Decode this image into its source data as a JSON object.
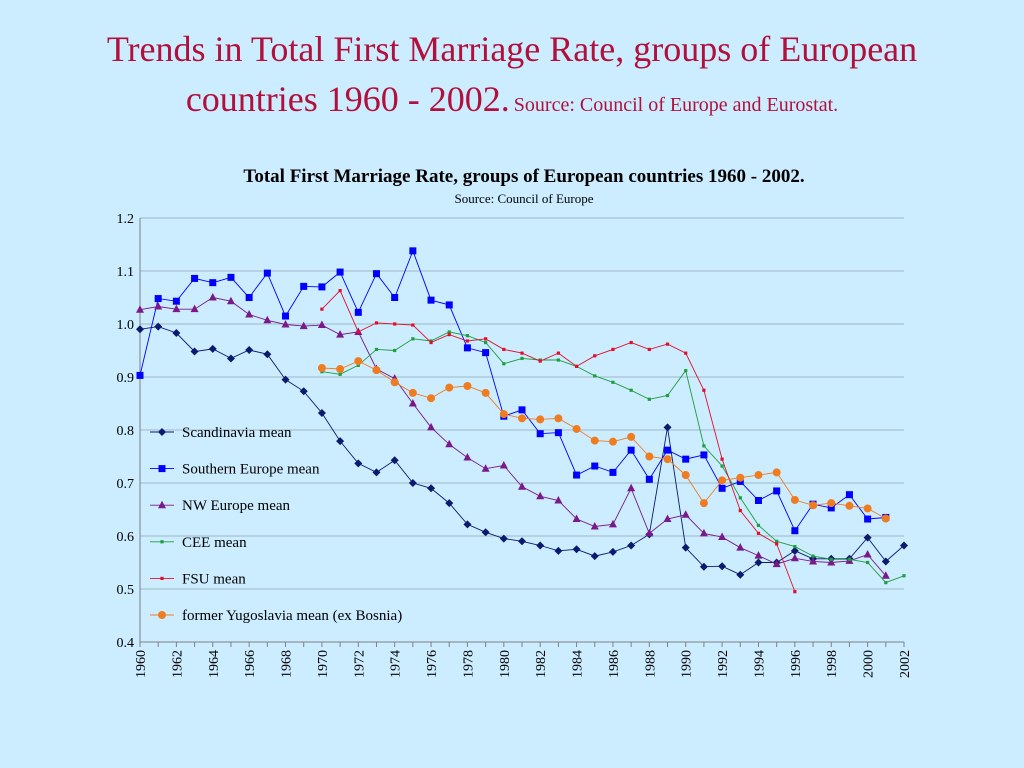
{
  "slide": {
    "title_main": "Trends in Total First Marriage Rate, groups of European countries 1960 - 2002.",
    "title_source": "Source: Council of Europe and Eurostat."
  },
  "chart_data": {
    "type": "line",
    "title": "Total First Marriage Rate, groups of European countries 1960 - 2002.",
    "subtitle": "Source: Council of Europe",
    "xlabel": "",
    "ylabel": "",
    "xlim": [
      1960,
      2002
    ],
    "ylim": [
      0.4,
      1.2
    ],
    "yticks": [
      "0.4",
      "0.5",
      "0.6",
      "0.7",
      "0.8",
      "0.9",
      "1.0",
      "1.1",
      "1.2"
    ],
    "xticks": [
      "1960",
      "1962",
      "1964",
      "1966",
      "1968",
      "1970",
      "1972",
      "1974",
      "1976",
      "1978",
      "1980",
      "1982",
      "1984",
      "1986",
      "1988",
      "1990",
      "1992",
      "1994",
      "1996",
      "1998",
      "2000",
      "2002"
    ],
    "grid": true,
    "legend_position": "left-inside",
    "series": [
      {
        "name": "Scandinavia mean",
        "color": "#0a1a6e",
        "marker": "diamond",
        "x": [
          1960,
          1961,
          1962,
          1963,
          1964,
          1965,
          1966,
          1967,
          1968,
          1969,
          1970,
          1971,
          1972,
          1973,
          1974,
          1975,
          1976,
          1977,
          1978,
          1979,
          1980,
          1981,
          1982,
          1983,
          1984,
          1985,
          1986,
          1987,
          1988,
          1989,
          1990,
          1991,
          1992,
          1993,
          1994,
          1995,
          1996,
          1997,
          1998,
          1999,
          2000,
          2001,
          2002
        ],
        "y": [
          0.99,
          0.995,
          0.983,
          0.948,
          0.953,
          0.935,
          0.951,
          0.943,
          0.895,
          0.873,
          0.832,
          0.779,
          0.737,
          0.72,
          0.743,
          0.7,
          0.69,
          0.662,
          0.622,
          0.607,
          0.595,
          0.59,
          0.582,
          0.572,
          0.575,
          0.562,
          0.57,
          0.582,
          0.603,
          0.805,
          0.578,
          0.542,
          0.543,
          0.527,
          0.55,
          0.55,
          0.572,
          0.557,
          0.557,
          0.557,
          0.597,
          0.552,
          0.582
        ]
      },
      {
        "name": "Southern Europe mean",
        "color": "#0000ff",
        "marker": "square",
        "x": [
          1960,
          1961,
          1962,
          1963,
          1964,
          1965,
          1966,
          1967,
          1968,
          1969,
          1970,
          1971,
          1972,
          1973,
          1974,
          1975,
          1976,
          1977,
          1978,
          1979,
          1980,
          1981,
          1982,
          1983,
          1984,
          1985,
          1986,
          1987,
          1988,
          1989,
          1990,
          1991,
          1992,
          1993,
          1994,
          1995,
          1996,
          1997,
          1998,
          1999,
          2000,
          2001
        ],
        "y": [
          0.903,
          1.048,
          1.043,
          1.086,
          1.078,
          1.088,
          1.05,
          1.096,
          1.015,
          1.071,
          1.07,
          1.098,
          1.022,
          1.095,
          1.05,
          1.138,
          1.045,
          1.036,
          0.955,
          0.946,
          0.826,
          0.838,
          0.793,
          0.795,
          0.715,
          0.732,
          0.72,
          0.762,
          0.707,
          0.762,
          0.745,
          0.753,
          0.69,
          0.703,
          0.667,
          0.685,
          0.61,
          0.66,
          0.653,
          0.678,
          0.632,
          0.635
        ]
      },
      {
        "name": "NW Europe mean",
        "color": "#7a1a8a",
        "marker": "triangle",
        "x": [
          1960,
          1961,
          1962,
          1963,
          1964,
          1965,
          1966,
          1967,
          1968,
          1969,
          1970,
          1971,
          1972,
          1973,
          1974,
          1975,
          1976,
          1977,
          1978,
          1979,
          1980,
          1981,
          1982,
          1983,
          1984,
          1985,
          1986,
          1987,
          1988,
          1989,
          1990,
          1991,
          1992,
          1993,
          1994,
          1995,
          1996,
          1997,
          1998,
          1999,
          2000,
          2001
        ],
        "y": [
          1.027,
          1.033,
          1.028,
          1.028,
          1.05,
          1.043,
          1.018,
          1.007,
          0.999,
          0.996,
          0.998,
          0.98,
          0.985,
          0.915,
          0.897,
          0.85,
          0.805,
          0.773,
          0.748,
          0.727,
          0.733,
          0.693,
          0.675,
          0.667,
          0.632,
          0.618,
          0.622,
          0.69,
          0.605,
          0.632,
          0.64,
          0.605,
          0.598,
          0.578,
          0.563,
          0.547,
          0.558,
          0.552,
          0.55,
          0.553,
          0.565,
          0.525
        ]
      },
      {
        "name": "CEE mean",
        "color": "#1e9e3c",
        "marker": "dot",
        "x": [
          1970,
          1971,
          1972,
          1973,
          1974,
          1975,
          1976,
          1977,
          1978,
          1979,
          1980,
          1981,
          1982,
          1983,
          1984,
          1985,
          1986,
          1987,
          1988,
          1989,
          1990,
          1991,
          1992,
          1993,
          1994,
          1995,
          1996,
          1997,
          1998,
          1999,
          2000,
          2001,
          2002
        ],
        "y": [
          0.91,
          0.905,
          0.922,
          0.952,
          0.95,
          0.972,
          0.968,
          0.985,
          0.978,
          0.965,
          0.925,
          0.935,
          0.932,
          0.932,
          0.92,
          0.902,
          0.89,
          0.875,
          0.858,
          0.865,
          0.912,
          0.77,
          0.732,
          0.672,
          0.62,
          0.59,
          0.58,
          0.562,
          0.556,
          0.556,
          0.55,
          0.512,
          0.525
        ]
      },
      {
        "name": "FSU mean",
        "color": "#e0102a",
        "marker": "dot",
        "x": [
          1970,
          1971,
          1972,
          1973,
          1974,
          1975,
          1976,
          1977,
          1978,
          1979,
          1980,
          1981,
          1982,
          1983,
          1984,
          1985,
          1986,
          1987,
          1988,
          1989,
          1990,
          1991,
          1992,
          1993,
          1994,
          1995,
          1996
        ],
        "y": [
          1.028,
          1.063,
          0.985,
          1.002,
          1.0,
          0.998,
          0.965,
          0.98,
          0.968,
          0.972,
          0.952,
          0.945,
          0.93,
          0.945,
          0.92,
          0.94,
          0.952,
          0.965,
          0.952,
          0.962,
          0.945,
          0.875,
          0.745,
          0.648,
          0.605,
          0.585,
          0.495
        ]
      },
      {
        "name": "former Yugoslavia mean (ex Bosnia)",
        "color": "#f07c20",
        "marker": "circle",
        "x": [
          1970,
          1971,
          1972,
          1973,
          1974,
          1975,
          1976,
          1977,
          1978,
          1979,
          1980,
          1981,
          1982,
          1983,
          1984,
          1985,
          1986,
          1987,
          1988,
          1989,
          1990,
          1991,
          1992,
          1993,
          1994,
          1995,
          1996,
          1997,
          1998,
          1999,
          2000,
          2001
        ],
        "y": [
          0.917,
          0.915,
          0.93,
          0.913,
          0.89,
          0.87,
          0.86,
          0.88,
          0.883,
          0.87,
          0.83,
          0.822,
          0.82,
          0.822,
          0.802,
          0.78,
          0.778,
          0.787,
          0.75,
          0.745,
          0.715,
          0.662,
          0.705,
          0.71,
          0.715,
          0.72,
          0.668,
          0.658,
          0.662,
          0.657,
          0.652,
          0.633
        ]
      }
    ]
  }
}
